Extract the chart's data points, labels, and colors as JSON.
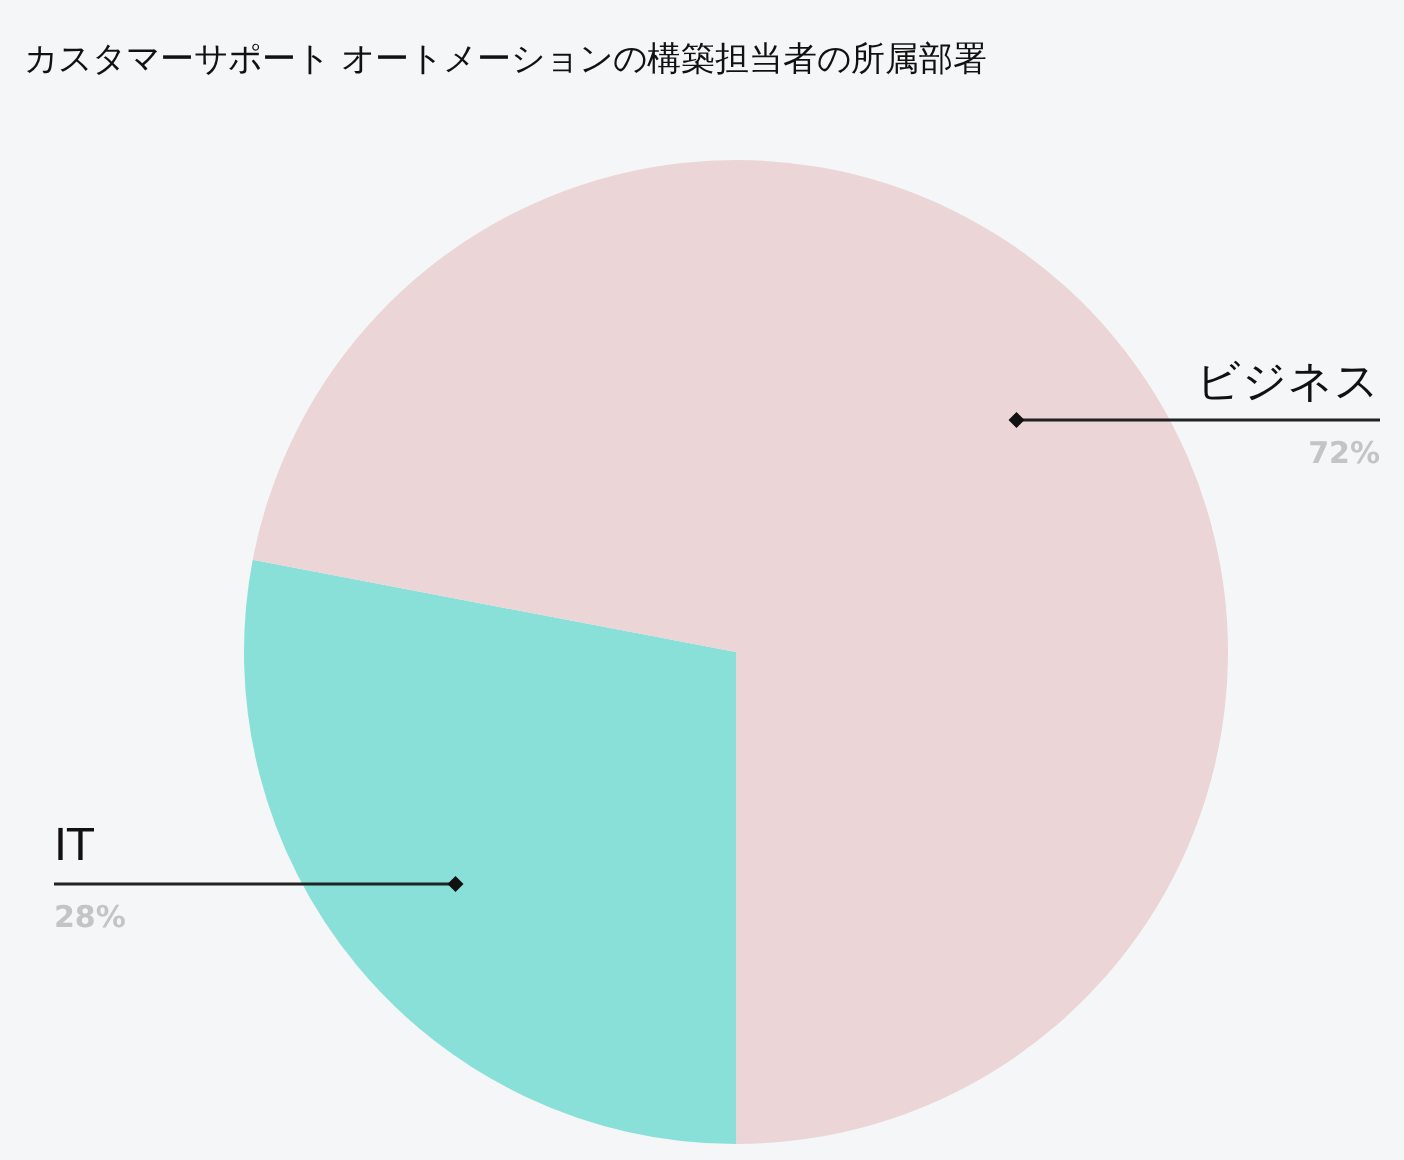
{
  "chart_data": {
    "type": "pie",
    "title": "カスタマーサポート オートメーションの構築担当者の所属部署",
    "categories": [
      "IT",
      "ビジネス"
    ],
    "values": [
      28,
      72
    ],
    "colors": [
      "#88e0d8",
      "#ebd5d7"
    ],
    "value_labels": [
      "28%",
      "72%"
    ],
    "legend": false
  }
}
